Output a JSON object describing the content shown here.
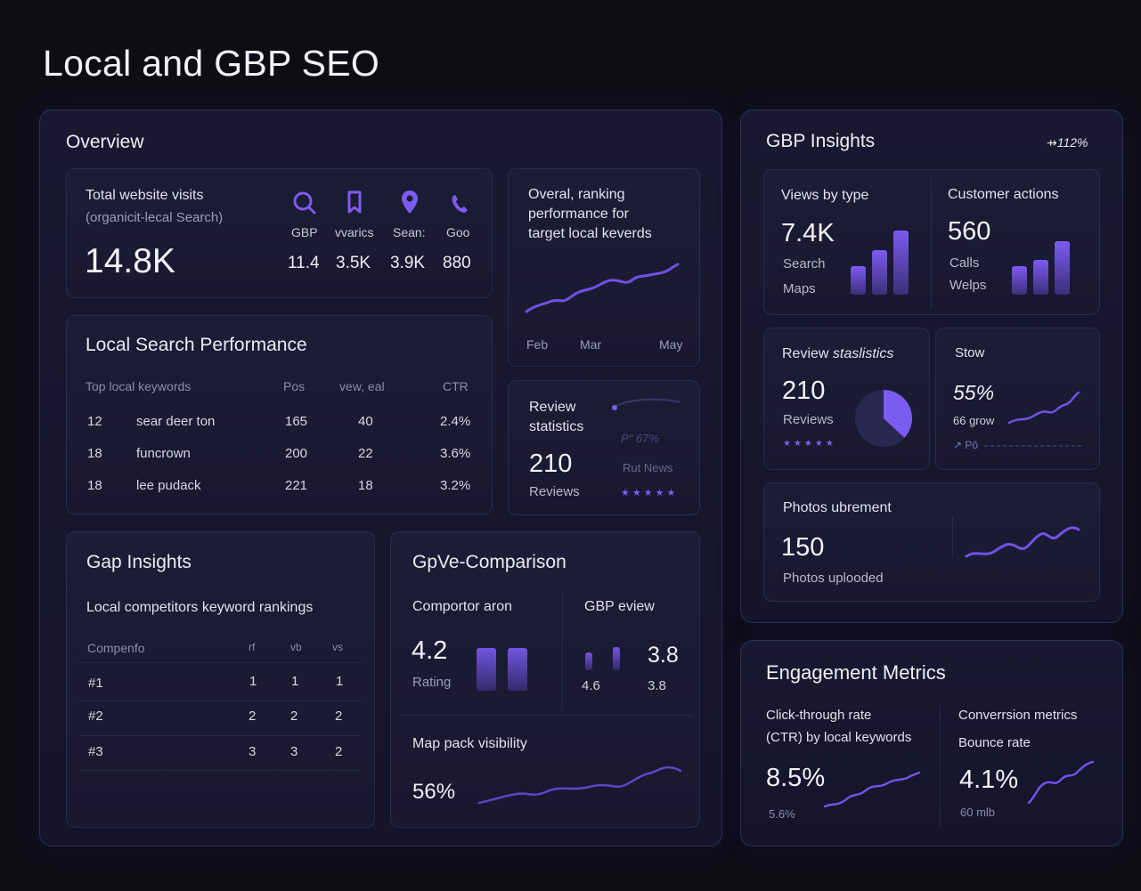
{
  "page": {
    "title": "Local and GBP SEO"
  },
  "overview": {
    "title": "Overview",
    "visits": {
      "title": "Total website visits",
      "subtitle": "(organicit-lecal Search)",
      "value": "14.8K",
      "metrics": [
        {
          "icon": "search-icon",
          "label": "GBP",
          "value": "11.4"
        },
        {
          "icon": "bookmark-icon",
          "label": "vvarics",
          "value": "3.5K"
        },
        {
          "icon": "map-pin-icon",
          "label": "Sean:",
          "value": "3.9K"
        },
        {
          "icon": "phone-icon",
          "label": "Goo",
          "value": "880"
        }
      ]
    },
    "ranking": {
      "title_line1": "Overal, ranking",
      "title_line2": "performance for",
      "title_line3": "target local keverds",
      "x_labels": [
        "Feb",
        "Mar",
        "May"
      ]
    },
    "local_search": {
      "title": "Local Search Performance",
      "headers": [
        "Top local keywords",
        "Pos",
        "vew, eal",
        "CTR"
      ],
      "rows": [
        [
          "12",
          "sear deer ton",
          "165",
          "40",
          "2.4%"
        ],
        [
          "18",
          "funcrown",
          "200",
          "22",
          "3.6%"
        ],
        [
          "18",
          "lee pudack",
          "221",
          "18",
          "3.2%"
        ]
      ]
    },
    "review_stats": {
      "title_line1": "Review",
      "title_line2": "statistics",
      "value": "210",
      "label": "Reviews",
      "side1": "Pʺ 67%",
      "side2": "Rut News",
      "stars": "★★★★★"
    },
    "gap": {
      "title": "Gap Insights",
      "subtitle": "Local competitors keyword rankings",
      "headers": [
        "Compenfo",
        "rf",
        "vb",
        "vs"
      ],
      "rows": [
        [
          "#1",
          "1",
          "1",
          "1"
        ],
        [
          "#2",
          "2",
          "2",
          "2"
        ],
        [
          "#3",
          "3",
          "3",
          "2"
        ]
      ]
    },
    "comparison": {
      "title": "GрVe-Comparison",
      "competitor": {
        "label": "Comportor aron",
        "value": "4.2",
        "sub": "Rating"
      },
      "gbp": {
        "label": "GBP eview",
        "value": "3.8",
        "val_a": "4.6",
        "val_b": "3.8"
      },
      "map_pack": {
        "label": "Map pack visibility",
        "value": "56%"
      }
    }
  },
  "gbp_insights": {
    "title": "GBP Insights",
    "badge": "⇸112%",
    "views": {
      "title": "Views by type",
      "value": "7.4K",
      "line1": "Search",
      "line2": "Maps",
      "bars": [
        0.45,
        0.7,
        1.0
      ]
    },
    "actions": {
      "title": "Customer actions",
      "value": "560",
      "line1": "Calls",
      "line2": "Welps",
      "bars": [
        0.5,
        0.62,
        0.95
      ]
    },
    "review": {
      "title_a": "Review ",
      "title_b": "staslistics",
      "value": "210",
      "label": "Reviews",
      "stars": "★★★★★",
      "pie_fraction": 0.37
    },
    "stow": {
      "title": "Stow",
      "value": "55%",
      "sub": "66 grow",
      "foot": "↗ Pô"
    },
    "photos": {
      "title": "Photos ubrement",
      "value": "150",
      "label": "Photos uplooded"
    }
  },
  "engagement": {
    "title": "Engagement Metrics",
    "ctr": {
      "line1": "Click-through rate",
      "line2": "(CTR) by local keywords",
      "value": "8.5%",
      "sub": "5.6%"
    },
    "conv": {
      "line1": "Converrsion metrics",
      "line2": "Bounce rate",
      "value": "4.1%",
      "sub": "60 mlb"
    }
  },
  "colors": {
    "accent": "#7b5cf0",
    "background": "#0d0d18",
    "panel": "#191830"
  }
}
